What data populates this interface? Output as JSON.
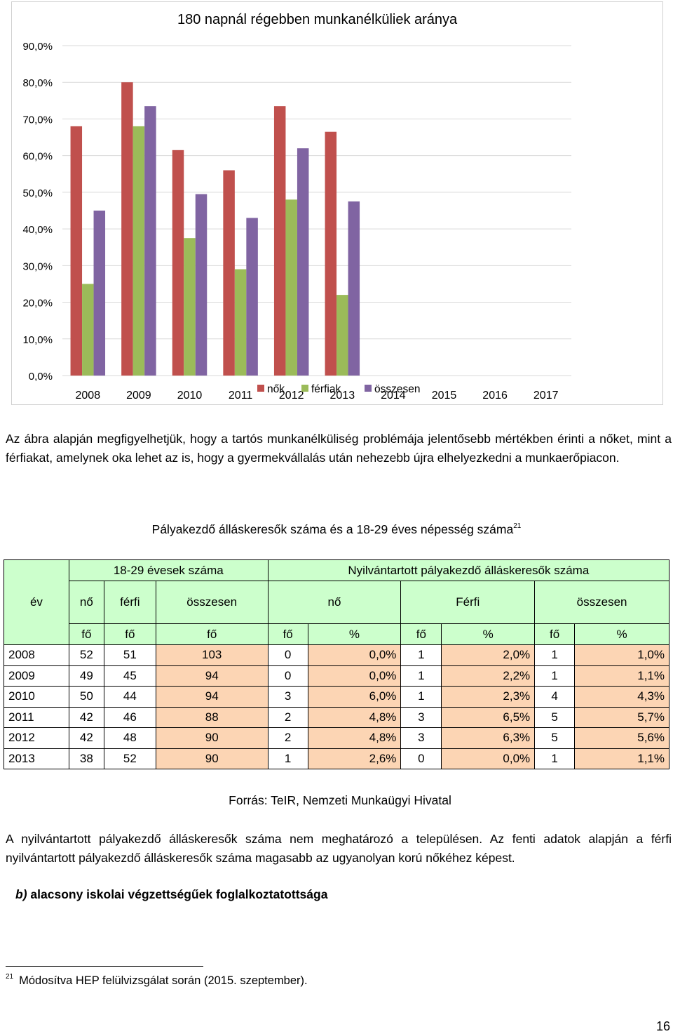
{
  "chart_data": {
    "type": "bar",
    "title": "180 napnál régebben munkanélküliek aránya",
    "categories": [
      "2008",
      "2009",
      "2010",
      "2011",
      "2012",
      "2013",
      "2014",
      "2015",
      "2016",
      "2017"
    ],
    "series": [
      {
        "name": "nők",
        "values": [
          68.0,
          80.0,
          61.5,
          56.0,
          73.5,
          66.5,
          null,
          null,
          null,
          null
        ]
      },
      {
        "name": "férfiak",
        "values": [
          25.0,
          68.0,
          37.5,
          29.0,
          48.0,
          22.0,
          null,
          null,
          null,
          null
        ]
      },
      {
        "name": "összesen",
        "values": [
          45.0,
          73.5,
          49.5,
          43.0,
          62.0,
          47.5,
          null,
          null,
          null,
          null
        ]
      }
    ],
    "ylim": [
      0,
      90
    ],
    "yticks": [
      "0,0%",
      "10,0%",
      "20,0%",
      "30,0%",
      "40,0%",
      "50,0%",
      "60,0%",
      "70,0%",
      "80,0%",
      "90,0%"
    ],
    "grid": true,
    "legend": "bottom",
    "colors": [
      "#c0504d",
      "#9bbb59",
      "#8064a2"
    ]
  },
  "paragraph1": "Az ábra alapján megfigyelhetjük, hogy a tartós munkanélküliség problémája jelentősebb mértékben érinti a nőket, mint a férfiakat, amelynek oka lehet az is, hogy a gyermekvállalás után nehezebb újra elhelyezkedni a munkaerőpiacon.",
  "table": {
    "title": "Pályakezdő álláskeresők száma és a 18-29 éves népesség száma",
    "title_sup": "21",
    "group1": "18-29 évesek száma",
    "group2": "Nyilvántartott pályakezdő álláskeresők száma",
    "col_ev": "év",
    "sub": [
      "nő",
      "férfi",
      "összesen",
      "nő",
      "Férfi",
      "összesen"
    ],
    "units": [
      "fő",
      "fő",
      "fő",
      "fő",
      "%",
      "fő",
      "%",
      "fő",
      "%"
    ],
    "rows": [
      [
        "2008",
        "52",
        "51",
        "103",
        "0",
        "0,0%",
        "1",
        "2,0%",
        "1",
        "1,0%"
      ],
      [
        "2009",
        "49",
        "45",
        "94",
        "0",
        "0,0%",
        "1",
        "2,2%",
        "1",
        "1,1%"
      ],
      [
        "2010",
        "50",
        "44",
        "94",
        "3",
        "6,0%",
        "1",
        "2,3%",
        "4",
        "4,3%"
      ],
      [
        "2011",
        "42",
        "46",
        "88",
        "2",
        "4,8%",
        "3",
        "6,5%",
        "5",
        "5,7%"
      ],
      [
        "2012",
        "42",
        "48",
        "90",
        "2",
        "4,8%",
        "3",
        "6,3%",
        "5",
        "5,6%"
      ],
      [
        "2013",
        "38",
        "52",
        "90",
        "1",
        "2,6%",
        "0",
        "0,0%",
        "1",
        "1,1%"
      ]
    ]
  },
  "source": "Forrás: TeIR, Nemzeti Munkaügyi Hivatal",
  "paragraph2": "A nyilvántartott pályakezdő álláskeresők száma nem meghatározó a településen. Az fenti adatok alapján a férfi nyilvántartott pályakezdő álláskeresők száma magasabb az ugyanolyan korú nőkéhez képest.",
  "subhead_prefix": "b)",
  "subhead_text": "alacsony iskolai végzettségűek foglalkoztatottsága",
  "footnote_mark": "21",
  "footnote_text": "Módosítva HEP felülvizsgálat során (2015. szeptember).",
  "page_number": "16"
}
